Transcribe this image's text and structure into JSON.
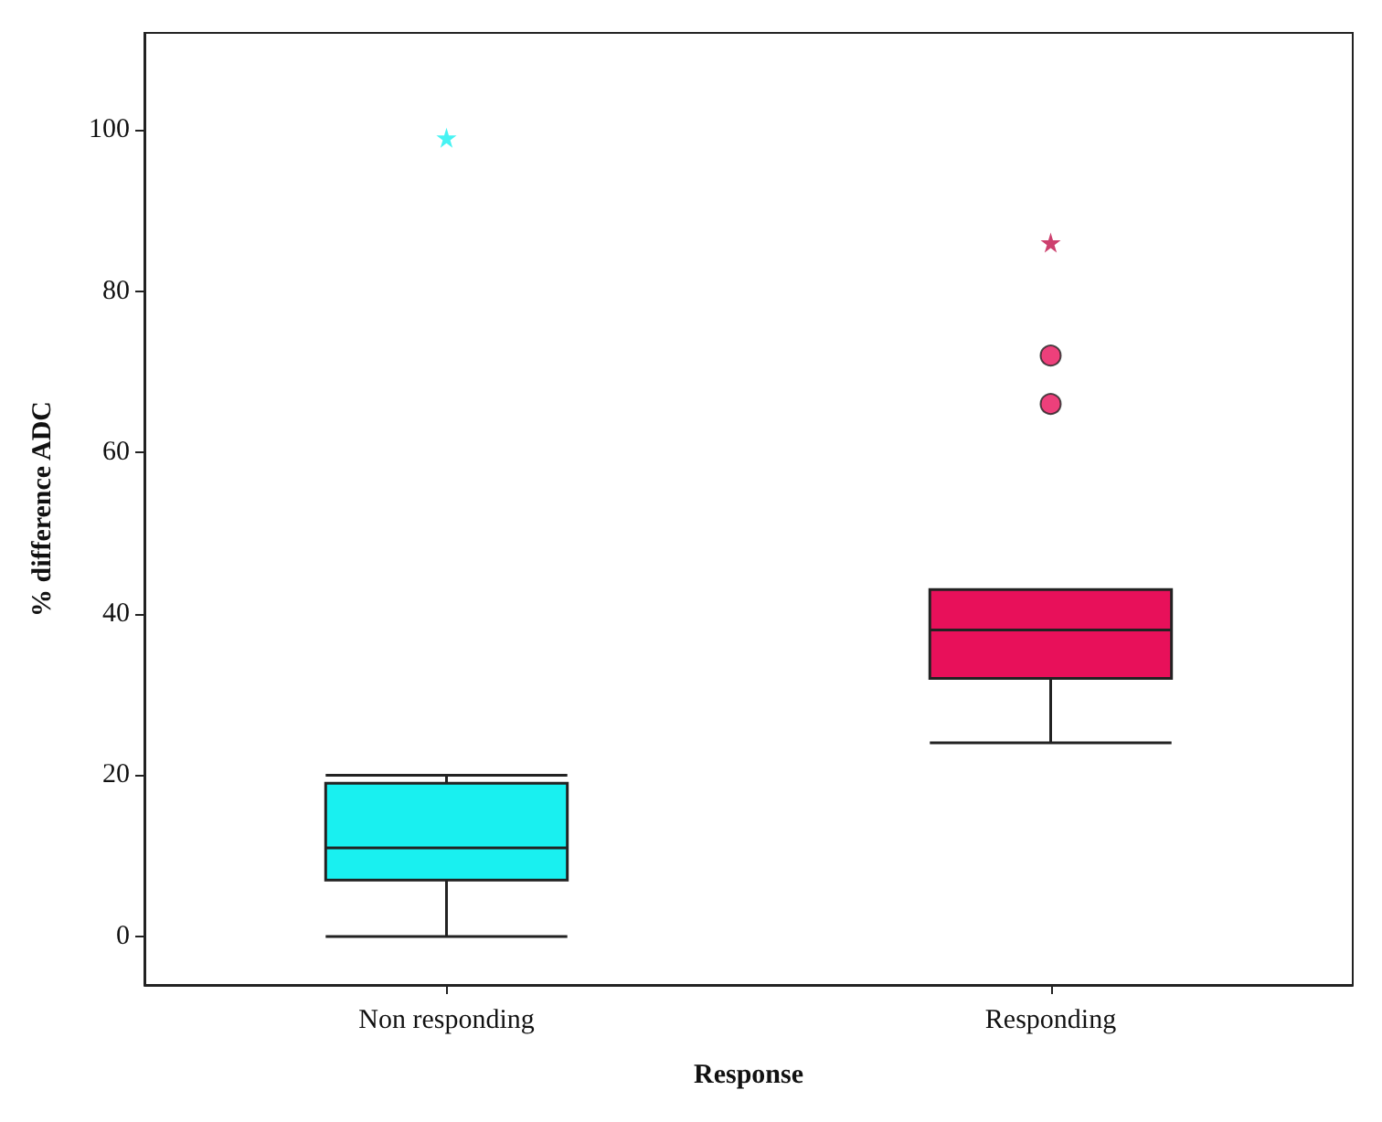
{
  "chart_data": {
    "type": "box",
    "xlabel": "Response",
    "ylabel": "% difference ADC",
    "categories": [
      "Non responding",
      "Responding"
    ],
    "ylim": [
      -6,
      112
    ],
    "yticks": [
      0,
      20,
      40,
      60,
      80,
      100
    ],
    "grid": false,
    "series": [
      {
        "colors": [
          "#19f0f0",
          "#e8105a"
        ],
        "boxes": [
          {
            "low": 0,
            "q1": 7,
            "median": 11,
            "q3": 19,
            "high": 20
          },
          {
            "low": 24,
            "q1": 32,
            "median": 38,
            "q3": 43,
            "high": 43,
            "outliers": [
              72,
              66
            ]
          }
        ]
      },
      {
        "type": "scatter",
        "marker": "star",
        "colors": [
          "#19f0f0",
          "#c0104a"
        ],
        "x": [
          "Non responding",
          "Responding"
        ],
        "values": [
          99,
          86
        ]
      }
    ]
  }
}
